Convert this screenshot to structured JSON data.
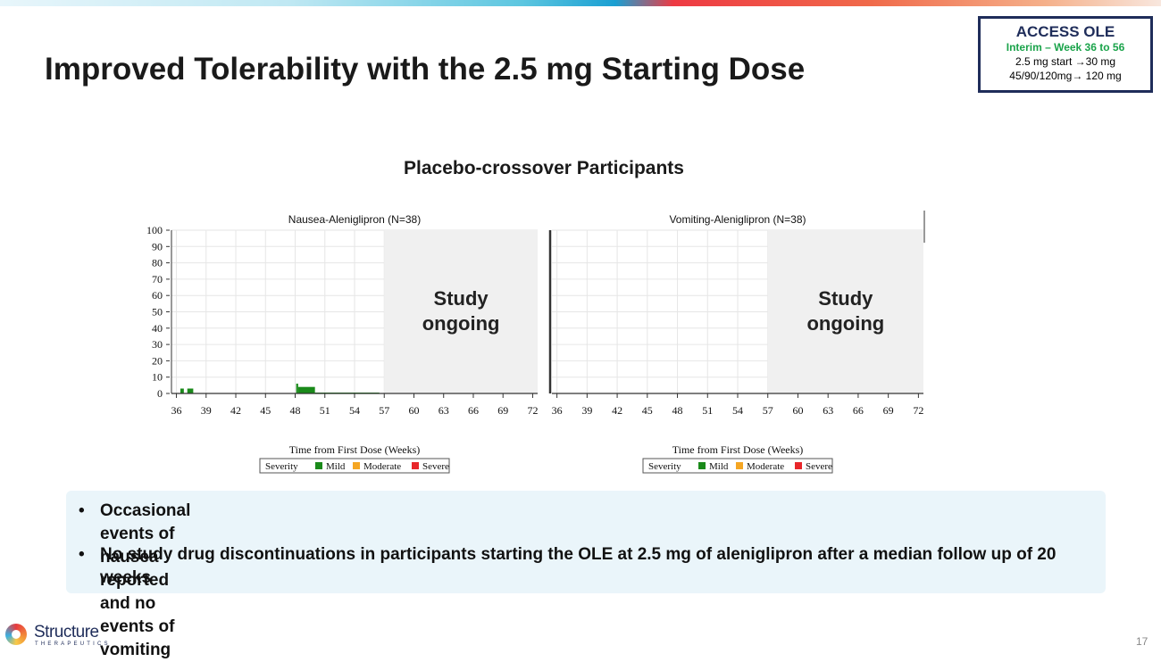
{
  "slide": {
    "title": "Improved Tolerability with the 2.5 mg Starting Dose",
    "section_title": "Placebo-crossover Participants",
    "page_number": "17"
  },
  "access_box": {
    "title": "ACCESS OLE",
    "subtitle": "Interim – Week 36 to 56",
    "line1": "2.5 mg start →30 mg",
    "line2": "45/90/120mg→ 120 mg"
  },
  "bullets": [
    "Occasional events of nausea reported and no events of vomiting",
    "No study drug discontinuations in participants starting the OLE at 2.5 mg of aleniglipron after a median follow up of 20 weeks"
  ],
  "logo": {
    "name": "Structure",
    "tagline": "THERAPEUTICS"
  },
  "chart_data": [
    {
      "type": "bar",
      "title": "Nausea-Aleniglipron (N=38)",
      "xlabel": "Time from First Dose (Weeks)",
      "ylabel": "",
      "x_ticks": [
        36,
        39,
        42,
        45,
        48,
        51,
        54,
        57,
        60,
        63,
        66,
        69,
        72
      ],
      "xlim": [
        35.5,
        72.5
      ],
      "y_ticks": [
        0,
        10,
        20,
        30,
        40,
        50,
        60,
        70,
        80,
        90,
        100
      ],
      "ylim": [
        0,
        100
      ],
      "shaded_region": {
        "x_start": 57,
        "x_end": 72.5,
        "label_line1": "Study",
        "label_line2": "ongoing"
      },
      "legend": {
        "title": "Severity",
        "entries": [
          {
            "name": "Mild",
            "color": "#1a8a1a"
          },
          {
            "name": "Moderate",
            "color": "#f5a623"
          },
          {
            "name": "Severe",
            "color": "#e8262a"
          }
        ]
      },
      "series": [
        {
          "name": "Mild",
          "color": "#1a8a1a",
          "bars": [
            {
              "x0": 36.4,
              "x1": 36.75,
              "value": 3
            },
            {
              "x0": 37.1,
              "x1": 37.7,
              "value": 3
            },
            {
              "x0": 48.1,
              "x1": 48.3,
              "value": 6
            },
            {
              "x0": 48.3,
              "x1": 50.0,
              "value": 4
            },
            {
              "x0": 50.0,
              "x1": 56.5,
              "value": 0.4
            }
          ]
        }
      ]
    },
    {
      "type": "bar",
      "title": "Vomiting-Aleniglipron (N=38)",
      "xlabel": "Time from First Dose (Weeks)",
      "ylabel": "",
      "x_ticks": [
        36,
        39,
        42,
        45,
        48,
        51,
        54,
        57,
        60,
        63,
        66,
        69,
        72
      ],
      "xlim": [
        35.5,
        72.5
      ],
      "y_ticks": [
        0,
        10,
        20,
        30,
        40,
        50,
        60,
        70,
        80,
        90,
        100
      ],
      "ylim": [
        0,
        100
      ],
      "shaded_region": {
        "x_start": 57,
        "x_end": 72.5,
        "label_line1": "Study",
        "label_line2": "ongoing"
      },
      "legend": {
        "title": "Severity",
        "entries": [
          {
            "name": "Mild",
            "color": "#1a8a1a"
          },
          {
            "name": "Moderate",
            "color": "#f5a623"
          },
          {
            "name": "Severe",
            "color": "#e8262a"
          }
        ]
      },
      "series": [
        {
          "name": "Mild",
          "color": "#1a8a1a",
          "bars": []
        }
      ]
    }
  ]
}
